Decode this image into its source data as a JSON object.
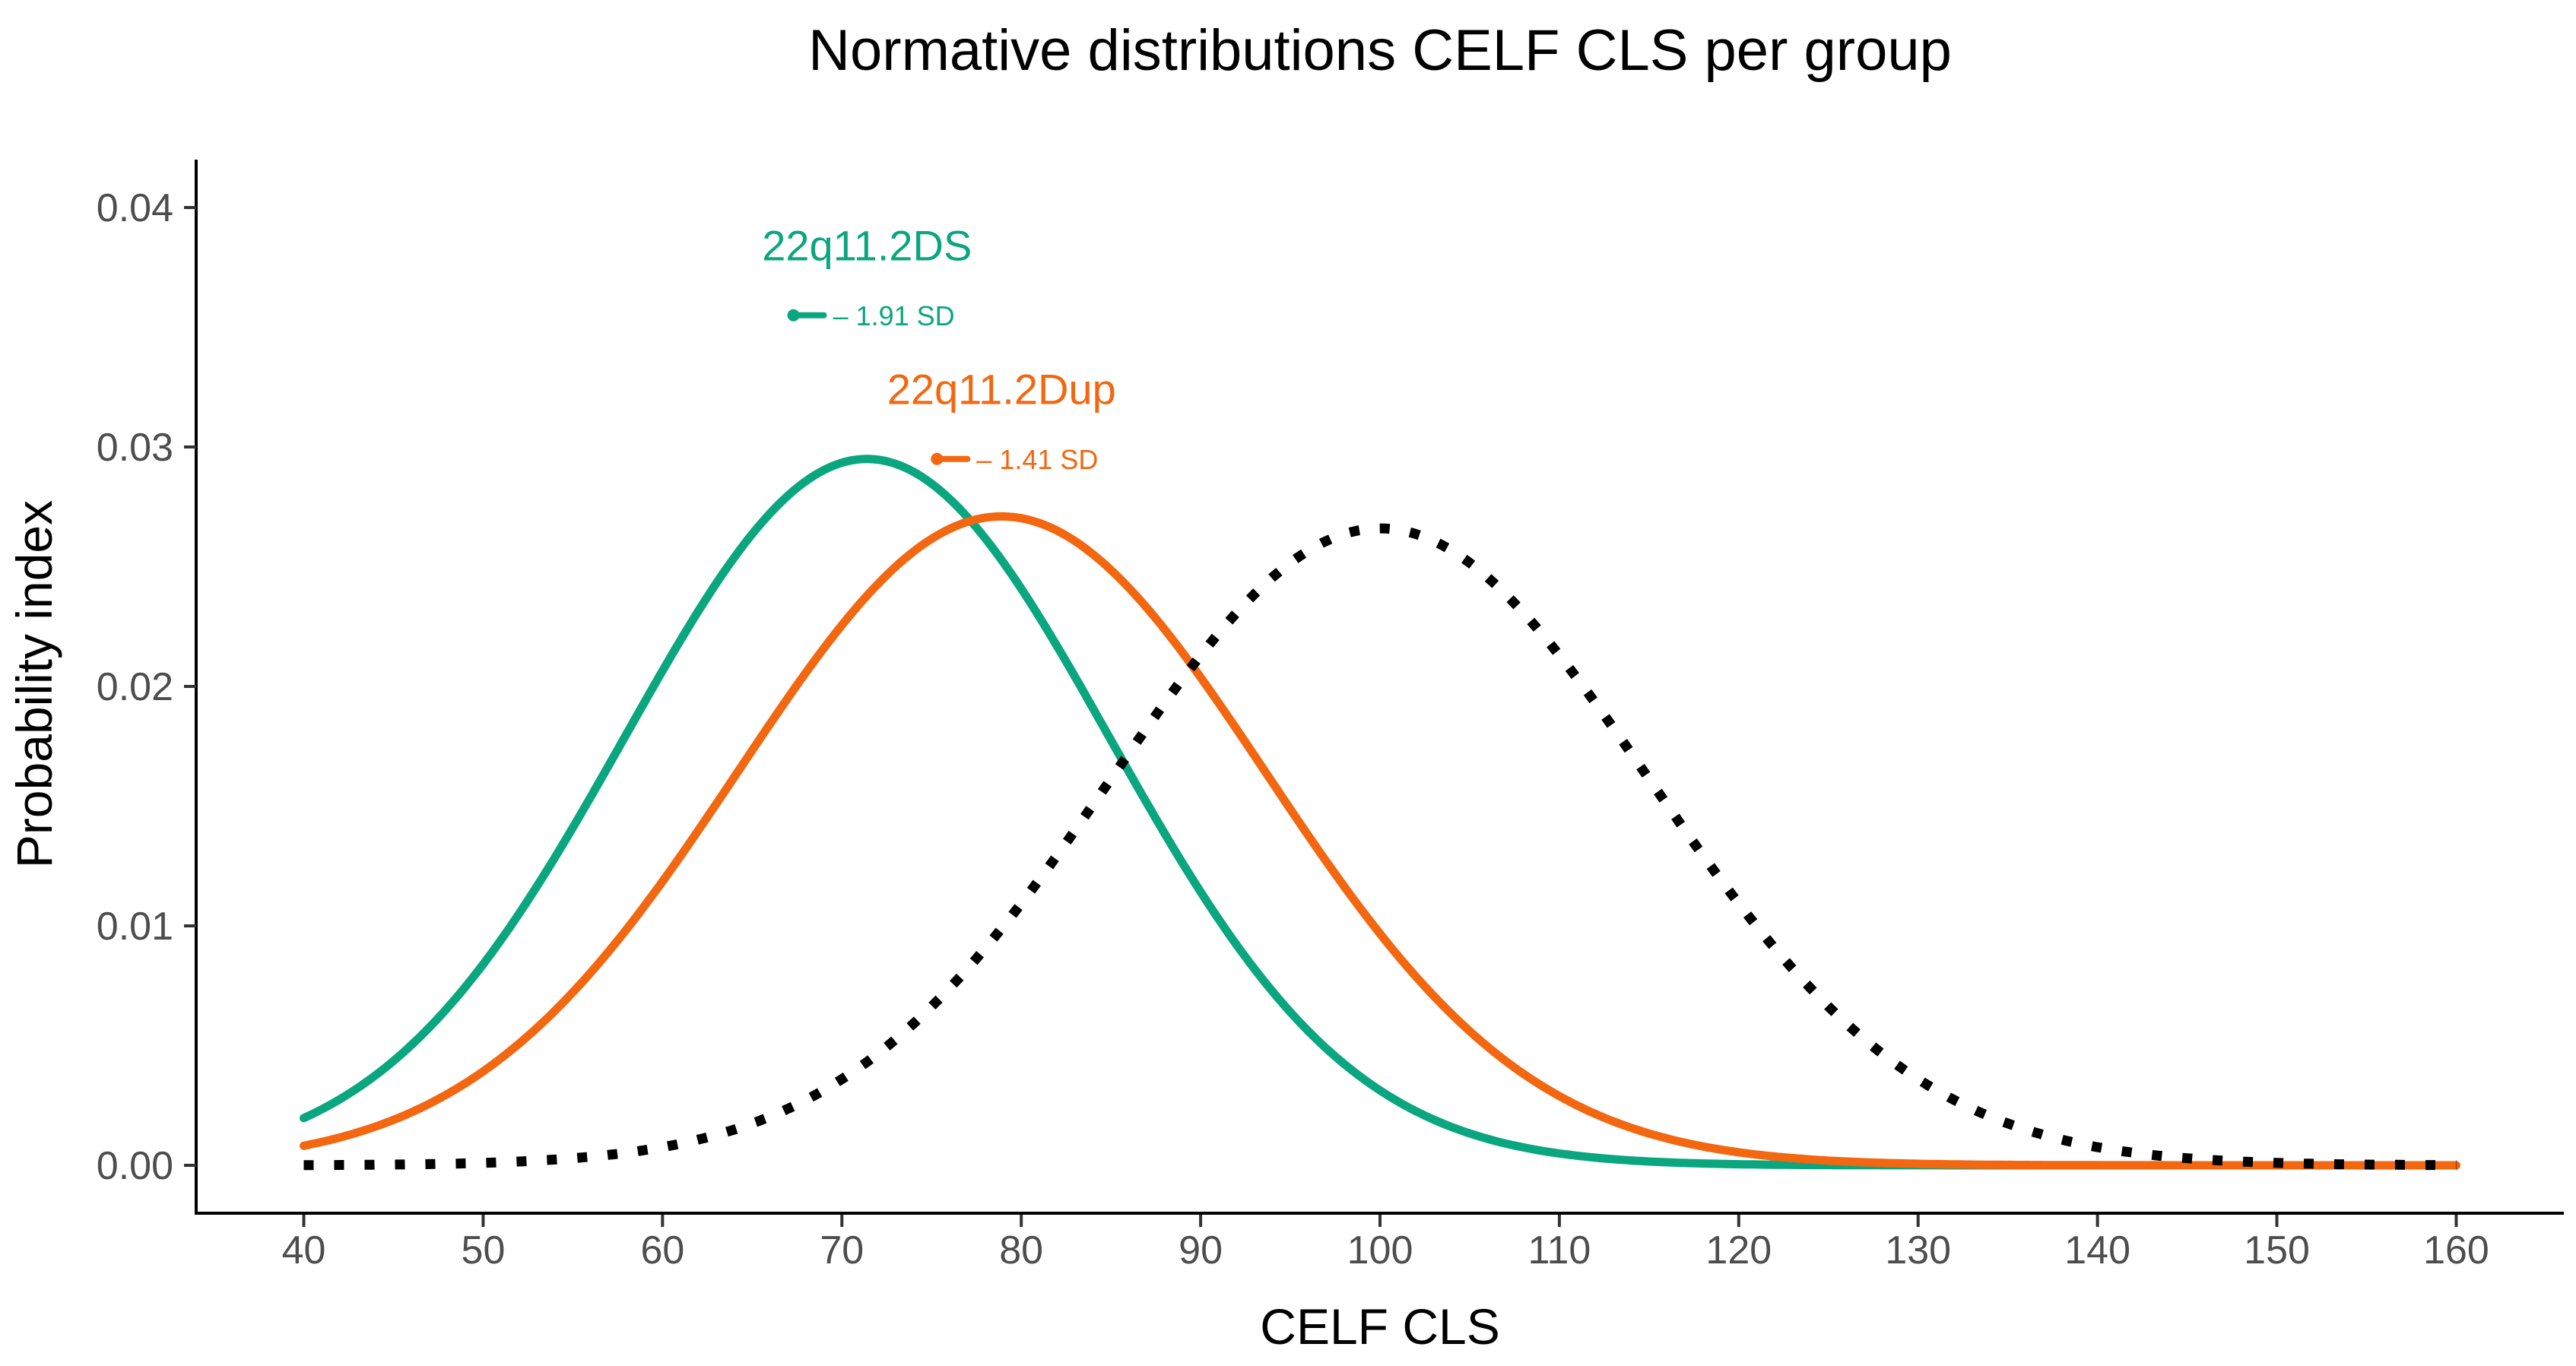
{
  "chart_data": {
    "type": "line",
    "title": "Normative distributions CELF CLS per group",
    "xlabel": "CELF CLS",
    "ylabel": "Probability index",
    "xlim": [
      34,
      166
    ],
    "ylim": [
      -0.002,
      0.042
    ],
    "x_ticks": [
      40,
      50,
      60,
      70,
      80,
      90,
      100,
      110,
      120,
      130,
      140,
      150,
      160
    ],
    "x_tick_labels": [
      "40",
      "50",
      "60",
      "70",
      "80",
      "90",
      "100",
      "110",
      "120",
      "130",
      "140",
      "150",
      "160"
    ],
    "y_ticks": [
      0.0,
      0.01,
      0.02,
      0.03,
      0.04
    ],
    "y_tick_labels": [
      "0.00",
      "0.01",
      "0.02",
      "0.03",
      "0.04"
    ],
    "grid": false,
    "legend": "none",
    "x_range": [
      40,
      160
    ],
    "series": [
      {
        "name": "22q11.2DS",
        "distribution": "normal",
        "mean": 71.4,
        "sd": 13.5,
        "color": "#0aa67f",
        "style": "solid",
        "label": "22q11.2DS",
        "sd_annotation": "– 1.91 SD",
        "peak": 0.0295
      },
      {
        "name": "22q11.2Dup",
        "distribution": "normal",
        "mean": 78.9,
        "sd": 14.7,
        "color": "#f26710",
        "style": "solid",
        "label": "22q11.2Dup",
        "sd_annotation": "– 1.41 SD",
        "peak": 0.0271
      },
      {
        "name": "Normative",
        "distribution": "normal",
        "mean": 100,
        "sd": 15,
        "color": "#000000",
        "style": "dotted",
        "label": "",
        "sd_annotation": "",
        "peak": 0.0266
      }
    ],
    "annotations": [
      {
        "series": "22q11.2DS",
        "text": "22q11.2DS",
        "sd_text": "– 1.91 SD",
        "label_x": 71.4,
        "label_y": 0.0378,
        "marker_x": 67.3,
        "marker_y": 0.0355,
        "color": "#0aa67f"
      },
      {
        "series": "22q11.2Dup",
        "text": "22q11.2Dup",
        "sd_text": "– 1.41 SD",
        "label_x": 78.9,
        "label_y": 0.0318,
        "marker_x": 75.3,
        "marker_y": 0.0295,
        "color": "#f26710"
      }
    ]
  }
}
